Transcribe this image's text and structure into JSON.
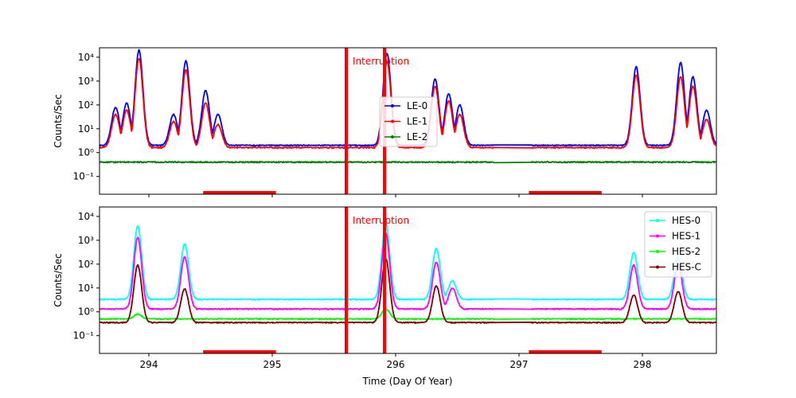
{
  "figure": {
    "xlabel": "Time (Day Of Year)",
    "colors": {
      "interruption": "#ff0000",
      "gap_bar": "#ff0000",
      "LE-0": "#0000ff",
      "LE-1": "#ff0000",
      "LE-2": "#008000",
      "HES-0": "#00ffff",
      "HES-1": "#ff00ff",
      "HES-2": "#00ff00",
      "HES-C": "#800000"
    }
  },
  "chart_data": [
    {
      "type": "line",
      "panel": "top",
      "ylabel": "Counts/Sec",
      "yscale": "log",
      "ylim": [
        0.018,
        25000
      ],
      "xlim": [
        293.6,
        298.6
      ],
      "x_ticks": [
        "294",
        "295",
        "296",
        "297",
        "298"
      ],
      "y_ticks": [
        "10^-1",
        "10^0",
        "10^1",
        "10^2",
        "10^3",
        "10^4"
      ],
      "legend_placement": "center",
      "annotation": "Interruption",
      "interruption_lines": [
        295.6,
        295.91
      ],
      "gap_bars": [
        [
          294.44,
          295.03
        ],
        [
          297.08,
          297.67
        ]
      ],
      "data_gap": [
        296.8,
        297.1
      ],
      "series": [
        {
          "name": "LE-0",
          "baseline": 2.0,
          "peaks": [
            [
              293.73,
              80
            ],
            [
              293.82,
              120
            ],
            [
              293.92,
              20000
            ],
            [
              294.2,
              40
            ],
            [
              294.3,
              7000
            ],
            [
              294.46,
              400
            ],
            [
              294.56,
              40
            ],
            [
              295.93,
              15000
            ],
            [
              296.32,
              1200
            ],
            [
              296.43,
              300
            ],
            [
              296.52,
              100
            ],
            [
              297.95,
              4000
            ],
            [
              298.31,
              6000
            ],
            [
              298.41,
              1500
            ],
            [
              298.52,
              60
            ]
          ]
        },
        {
          "name": "LE-1",
          "baseline": 1.6,
          "peaks": [
            [
              293.73,
              40
            ],
            [
              293.82,
              60
            ],
            [
              293.92,
              9000
            ],
            [
              294.2,
              20
            ],
            [
              294.3,
              3000
            ],
            [
              294.46,
              120
            ],
            [
              294.56,
              15
            ],
            [
              295.93,
              7000
            ],
            [
              296.32,
              600
            ],
            [
              296.43,
              150
            ],
            [
              296.52,
              40
            ],
            [
              297.95,
              1800
            ],
            [
              298.31,
              1500
            ],
            [
              298.41,
              600
            ],
            [
              298.52,
              25
            ]
          ]
        },
        {
          "name": "LE-2",
          "baseline": 0.4,
          "peaks": []
        }
      ]
    },
    {
      "type": "line",
      "panel": "bottom",
      "ylabel": "Counts/Sec",
      "yscale": "log",
      "ylim": [
        0.018,
        25000
      ],
      "xlim": [
        293.6,
        298.6
      ],
      "x_ticks": [
        "294",
        "295",
        "296",
        "297",
        "298"
      ],
      "y_ticks": [
        "10^-1",
        "10^0",
        "10^1",
        "10^2",
        "10^3",
        "10^4"
      ],
      "legend_placement": "upper right",
      "annotation": "Interruption",
      "interruption_lines": [
        295.6,
        295.91
      ],
      "gap_bars": [
        [
          294.44,
          295.03
        ],
        [
          297.08,
          297.67
        ]
      ],
      "data_gap": [
        296.8,
        297.1
      ],
      "series": [
        {
          "name": "HES-0",
          "baseline": 3.3,
          "peaks": [
            [
              293.91,
              4000
            ],
            [
              294.29,
              700
            ],
            [
              295.92,
              5000
            ],
            [
              296.33,
              450
            ],
            [
              296.46,
              20
            ],
            [
              297.93,
              300
            ],
            [
              298.29,
              200
            ]
          ]
        },
        {
          "name": "HES-1",
          "baseline": 1.3,
          "peaks": [
            [
              293.91,
              1300
            ],
            [
              294.29,
              200
            ],
            [
              295.92,
              2000
            ],
            [
              296.33,
              120
            ],
            [
              296.46,
              10
            ],
            [
              297.93,
              90
            ],
            [
              298.29,
              100
            ]
          ]
        },
        {
          "name": "HES-2",
          "baseline": 0.5,
          "peaks": [
            [
              293.91,
              0.8
            ],
            [
              295.92,
              1.3
            ]
          ]
        },
        {
          "name": "HES-C",
          "baseline": 0.35,
          "peaks": [
            [
              293.91,
              90
            ],
            [
              294.29,
              9
            ],
            [
              295.92,
              170
            ],
            [
              296.33,
              12
            ],
            [
              297.93,
              5
            ],
            [
              298.29,
              7
            ]
          ]
        }
      ]
    }
  ]
}
